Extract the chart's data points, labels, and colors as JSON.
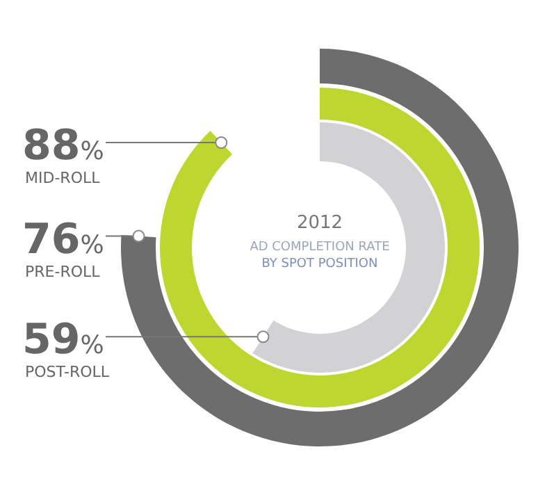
{
  "chart_data": {
    "type": "other",
    "title": "2012",
    "subtitle": "AD COMPLETION RATE BY SPOT POSITION",
    "categories": [
      "PRE-ROLL",
      "MID-ROLL",
      "POST-ROLL"
    ],
    "values": [
      76,
      88,
      59
    ],
    "value_labels": [
      "76%",
      "88%",
      "59%"
    ],
    "colors": [
      "#6d6d6d",
      "#bed630",
      "#d2d2d5"
    ]
  }
}
